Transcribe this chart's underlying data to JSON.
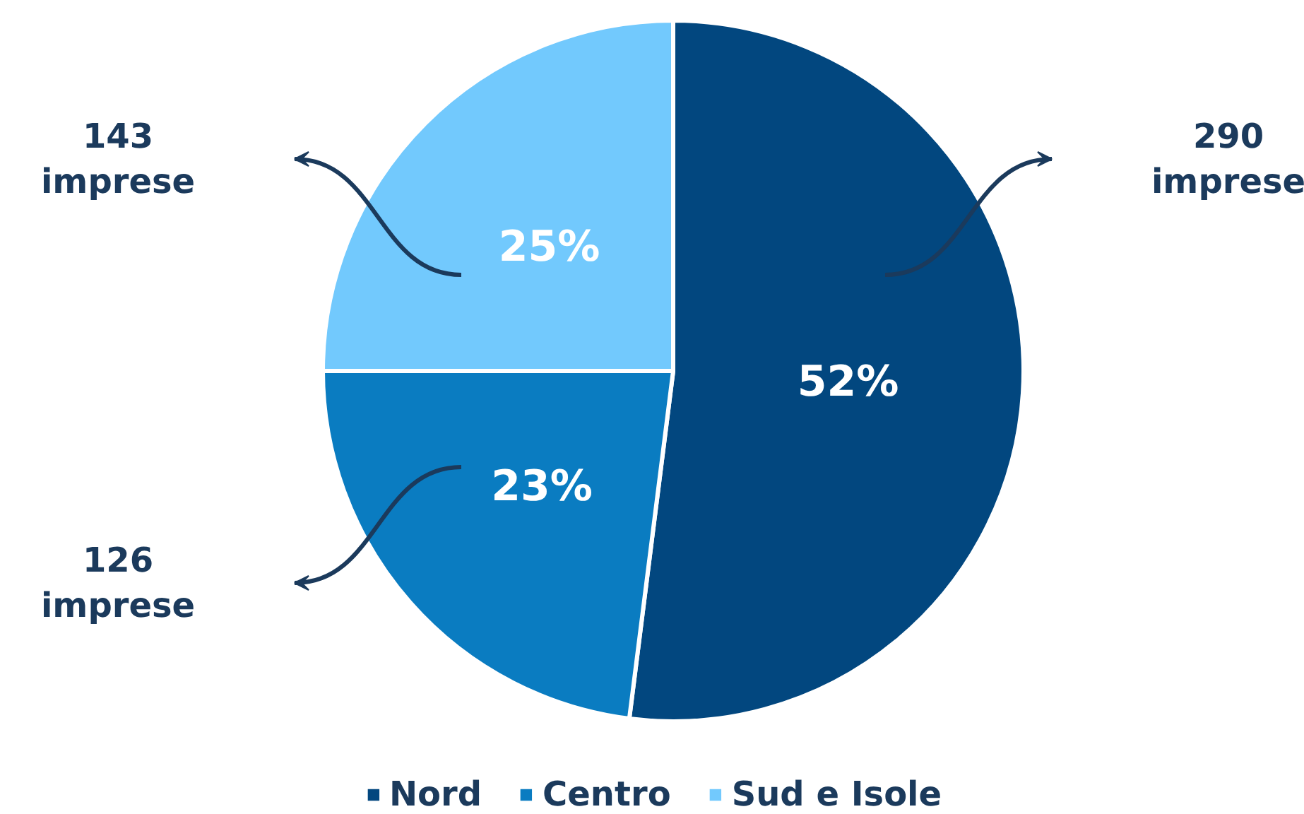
{
  "chart_data": {
    "type": "pie",
    "categories": [
      "Nord",
      "Centro",
      "Sud e Isole"
    ],
    "values": [
      52,
      23,
      25
    ],
    "colors": [
      "#02477f",
      "#0a7cc1",
      "#72c9fd"
    ],
    "value_labels": [
      "52%",
      "23%",
      "25%"
    ],
    "annotations": [
      "290 imprese",
      "126 imprese",
      "143 imprese"
    ],
    "legend": "bottom"
  }
}
